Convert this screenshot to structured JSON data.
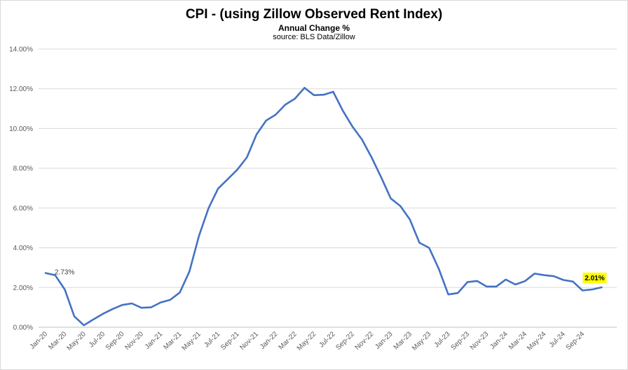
{
  "chart_data": {
    "type": "line",
    "title": "CPI - (using Zillow Observed Rent Index)",
    "subtitle": "Annual Change %",
    "source": "source: BLS Data/Zillow",
    "ylim": [
      0,
      14
    ],
    "y_ticks": [
      "0.00%",
      "2.00%",
      "4.00%",
      "6.00%",
      "8.00%",
      "10.00%",
      "12.00%",
      "14.00%"
    ],
    "y_tick_values": [
      0,
      2,
      4,
      6,
      8,
      10,
      12,
      14
    ],
    "x_tick_labels": [
      "Jan-20",
      "Mar-20",
      "May-20",
      "Jul-20",
      "Sep-20",
      "Nov-20",
      "Jan-21",
      "Mar-21",
      "May-21",
      "Jul-21",
      "Sep-21",
      "Nov-21",
      "Jan-22",
      "Mar-22",
      "May-22",
      "Jul-22",
      "Sep-22",
      "Nov-22",
      "Jan-23",
      "Mar-23",
      "May-23",
      "Jul-23",
      "Sep-23",
      "Nov-23",
      "Jan-24",
      "Mar-24",
      "May-24",
      "Jul-24",
      "Sep-24"
    ],
    "grid": true,
    "legend": "none",
    "line_color": "#4472c4",
    "series": [
      {
        "values": [
          2.73,
          2.62,
          1.9,
          0.55,
          0.1,
          0.4,
          0.68,
          0.92,
          1.12,
          1.2,
          0.98,
          1.0,
          1.25,
          1.38,
          1.75,
          2.8,
          4.6,
          6.0,
          6.98,
          7.45,
          7.93,
          8.55,
          9.7,
          10.4,
          10.7,
          11.2,
          11.5,
          12.05,
          11.68,
          11.7,
          11.85,
          10.9,
          10.1,
          9.45,
          8.55,
          7.55,
          6.48,
          6.1,
          5.42,
          4.25,
          4.0,
          2.95,
          1.65,
          1.72,
          2.27,
          2.33,
          2.05,
          2.05,
          2.4,
          2.15,
          2.32,
          2.7,
          2.62,
          2.57,
          2.38,
          2.3,
          1.85,
          1.9,
          2.01
        ]
      }
    ],
    "data_labels": {
      "first": "2.73%",
      "last": "2.01%",
      "last_highlight": "#ffff00"
    }
  }
}
